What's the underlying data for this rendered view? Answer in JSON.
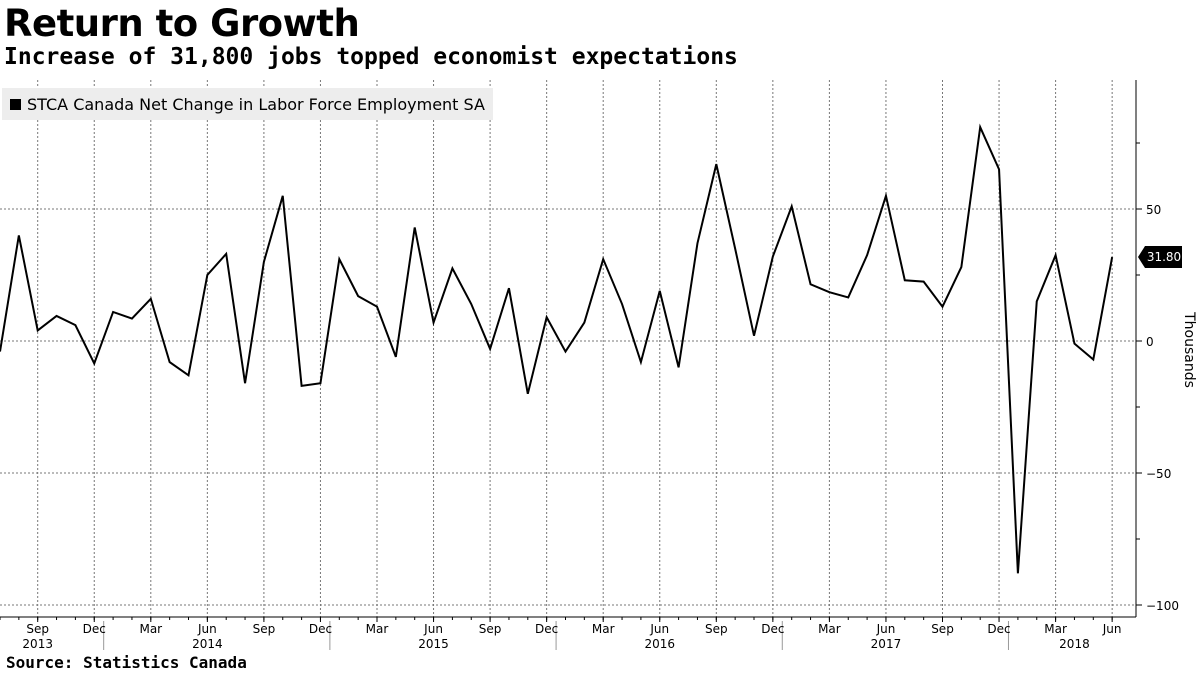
{
  "title": "Return to Growth",
  "subtitle": "Increase of 31,800 jobs topped economist expectations",
  "source": "Source: Statistics Canada",
  "chart_data": {
    "type": "line",
    "title": "Return to Growth",
    "subtitle": "Increase of 31,800 jobs topped economist expectations",
    "ylabel": "Thousands",
    "ylim": [
      -100,
      95
    ],
    "yticks": [
      50,
      0,
      -50,
      -100
    ],
    "last_value_label": "31.80",
    "grid": true,
    "legend_position": "top-left",
    "line_color": "#000000",
    "series": [
      {
        "name": "STCA Canada Net Change in Labor Force Employment SA",
        "x": [
          "2013-07",
          "2013-08",
          "2013-09",
          "2013-10",
          "2013-11",
          "2013-12",
          "2014-01",
          "2014-02",
          "2014-03",
          "2014-04",
          "2014-05",
          "2014-06",
          "2014-07",
          "2014-08",
          "2014-09",
          "2014-10",
          "2014-11",
          "2014-12",
          "2015-01",
          "2015-02",
          "2015-03",
          "2015-04",
          "2015-05",
          "2015-06",
          "2015-07",
          "2015-08",
          "2015-09",
          "2015-10",
          "2015-11",
          "2015-12",
          "2016-01",
          "2016-02",
          "2016-03",
          "2016-04",
          "2016-05",
          "2016-06",
          "2016-07",
          "2016-08",
          "2016-09",
          "2016-10",
          "2016-11",
          "2016-12",
          "2017-01",
          "2017-02",
          "2017-03",
          "2017-04",
          "2017-05",
          "2017-06",
          "2017-07",
          "2017-08",
          "2017-09",
          "2017-10",
          "2017-11",
          "2017-12",
          "2018-01",
          "2018-02",
          "2018-03",
          "2018-04",
          "2018-05",
          "2018-06"
        ],
        "values": [
          -4,
          40,
          4,
          9.5,
          6,
          -8.5,
          11,
          8.5,
          16,
          -8,
          -13,
          25,
          33,
          -16,
          30,
          55,
          -17,
          -16,
          31,
          17,
          13,
          -6,
          43,
          7,
          27.5,
          14,
          -3,
          20,
          -20,
          9,
          -4,
          7,
          31,
          14,
          -8,
          19,
          -10,
          37,
          67,
          35,
          2,
          32,
          51,
          21.5,
          18.5,
          16.5,
          32.5,
          55,
          23,
          22.5,
          13,
          28,
          81,
          65,
          -88,
          15,
          32.5,
          -1,
          -7,
          31.8
        ]
      }
    ],
    "x_month_labels": [
      {
        "label": "Sep",
        "date": "2013-09"
      },
      {
        "label": "Dec",
        "date": "2013-12"
      },
      {
        "label": "Mar",
        "date": "2014-03"
      },
      {
        "label": "Jun",
        "date": "2014-06"
      },
      {
        "label": "Sep",
        "date": "2014-09"
      },
      {
        "label": "Dec",
        "date": "2014-12"
      },
      {
        "label": "Mar",
        "date": "2015-03"
      },
      {
        "label": "Jun",
        "date": "2015-06"
      },
      {
        "label": "Sep",
        "date": "2015-09"
      },
      {
        "label": "Dec",
        "date": "2015-12"
      },
      {
        "label": "Mar",
        "date": "2016-03"
      },
      {
        "label": "Jun",
        "date": "2016-06"
      },
      {
        "label": "Sep",
        "date": "2016-09"
      },
      {
        "label": "Dec",
        "date": "2016-12"
      },
      {
        "label": "Mar",
        "date": "2017-03"
      },
      {
        "label": "Jun",
        "date": "2017-06"
      },
      {
        "label": "Sep",
        "date": "2017-09"
      },
      {
        "label": "Dec",
        "date": "2017-12"
      },
      {
        "label": "Mar",
        "date": "2018-03"
      },
      {
        "label": "Jun",
        "date": "2018-06"
      }
    ],
    "x_year_labels": [
      {
        "label": "2013",
        "date": "2013-09"
      },
      {
        "label": "2014",
        "date": "2014-06"
      },
      {
        "label": "2015",
        "date": "2015-06"
      },
      {
        "label": "2016",
        "date": "2016-06"
      },
      {
        "label": "2017",
        "date": "2017-06"
      },
      {
        "label": "2018",
        "date": "2018-04"
      }
    ],
    "year_boundaries": [
      "2013-12",
      "2014-12",
      "2015-12",
      "2016-12",
      "2017-12"
    ]
  }
}
